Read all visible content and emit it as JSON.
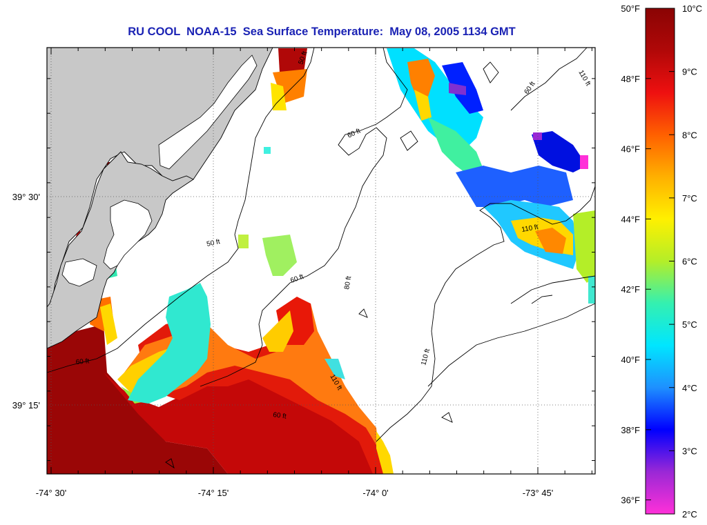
{
  "title": "RU COOL  NOAA-15  Sea Surface Temperature:  May 08, 2005 1134 GMT",
  "map": {
    "lon_ticks": [
      {
        "label": "-74° 30'",
        "lon": -74.5
      },
      {
        "label": "-74° 15'",
        "lon": -74.25
      },
      {
        "label": "-74° 0'",
        "lon": -74.0
      },
      {
        "label": "-73° 45'",
        "lon": -73.75
      }
    ],
    "lat_ticks": [
      {
        "label": "39° 30'",
        "lat": 39.5
      },
      {
        "label": "39° 15'",
        "lat": 39.25
      }
    ],
    "contour_labels": [
      "50 ft",
      "50 ft",
      "60 ft",
      "60 ft",
      "60 ft",
      "60 ft",
      "80 ft",
      "60 ft",
      "110 ft",
      "110 ft",
      "110 ft",
      "110 ft"
    ],
    "land_color": "#c8c8c8",
    "ocean_color": "#ffffff"
  },
  "colorbar": {
    "celsius_labels": [
      "10°C",
      "9°C",
      "8°C",
      "7°C",
      "6°C",
      "5°C",
      "4°C",
      "3°C",
      "2°C"
    ],
    "fahrenheit_labels": [
      "50°F",
      "48°F",
      "46°F",
      "44°F",
      "42°F",
      "40°F",
      "38°F",
      "36°F"
    ],
    "celsius_range": [
      2,
      10
    ],
    "stops": [
      "#ff30d8",
      "#9a28d6",
      "#0000ff",
      "#1e90ff",
      "#00e6ff",
      "#34f0b0",
      "#b4ee28",
      "#fff000",
      "#ffb000",
      "#ff6000",
      "#ee1010",
      "#b00808",
      "#8a0404"
    ]
  }
}
